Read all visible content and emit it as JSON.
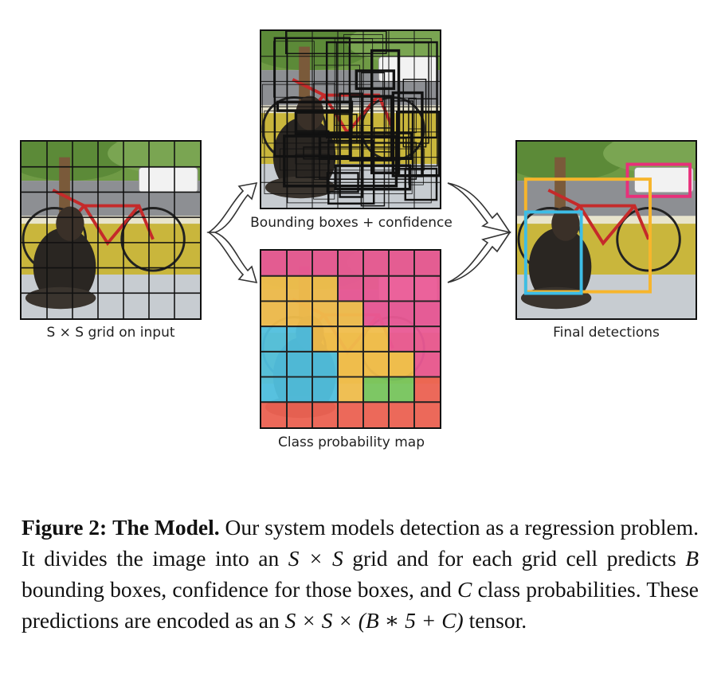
{
  "figure": {
    "panels": {
      "input": {
        "label": "S × S grid on input",
        "grid": 7
      },
      "boxes": {
        "label": "Bounding boxes + confidence"
      },
      "classmap": {
        "label": "Class probability map",
        "cells": [
          [
            "pink",
            "pink",
            "pink",
            "pink",
            "pink",
            "pink",
            "pink"
          ],
          [
            "yellow",
            "yellow",
            "yellow",
            "pink",
            "pink",
            "pink",
            "pink"
          ],
          [
            "yellow",
            "yellow",
            "yellow",
            "yellow",
            "pink",
            "pink",
            "pink"
          ],
          [
            "blue",
            "blue",
            "yellow",
            "yellow",
            "yellow",
            "pink",
            "pink"
          ],
          [
            "blue",
            "blue",
            "blue",
            "yellow",
            "yellow",
            "yellow",
            "pink"
          ],
          [
            "blue",
            "blue",
            "blue",
            "yellow",
            "green",
            "green",
            "red"
          ],
          [
            "red",
            "red",
            "red",
            "red",
            "red",
            "red",
            "red"
          ]
        ]
      },
      "detections": {
        "label": "Final detections",
        "boxes": [
          {
            "color": "#e8307a"
          },
          {
            "color": "#f7b52c"
          },
          {
            "color": "#3dbde6"
          }
        ]
      }
    },
    "colors": {
      "pink": "#e8478a",
      "yellow": "#f0b638",
      "blue": "#3db8dc",
      "green": "#6abf4b",
      "red": "#ec5140"
    },
    "caption": {
      "label": "Figure 2:",
      "title": "The Model.",
      "text1": " Our system models detection as a regression problem. It divides the image into an ",
      "m1": "S × S",
      "text2": " grid and for each grid cell predicts ",
      "m2": "B",
      "text3": " bounding boxes, confidence for those boxes, and ",
      "m3": "C",
      "text4": " class probabilities.  These predictions are encoded as an ",
      "m4": "S × S × (B ∗ 5 + C)",
      "text5": " tensor."
    }
  }
}
